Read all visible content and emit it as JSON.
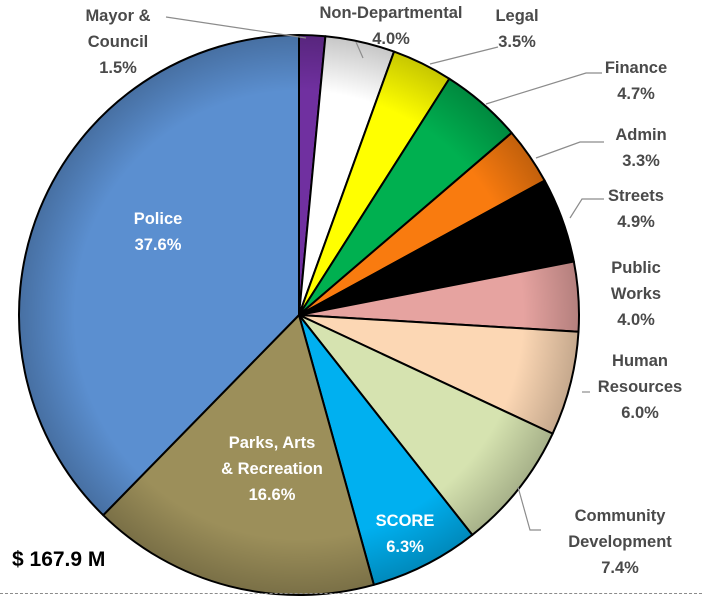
{
  "chart_data": {
    "type": "pie",
    "title": "",
    "total_label": "$ 167.9 M",
    "slices": [
      {
        "label": [
          "Mayor &",
          "Council"
        ],
        "value": 1.5,
        "value_text": "1.5%",
        "color": "#7030a0"
      },
      {
        "label": [
          "Non-Departmental"
        ],
        "value": 4.0,
        "value_text": "4.0%",
        "color": "#ffffff"
      },
      {
        "label": [
          "Legal"
        ],
        "value": 3.5,
        "value_text": "3.5%",
        "color": "#ffff00"
      },
      {
        "label": [
          "Finance"
        ],
        "value": 4.7,
        "value_text": "4.7%",
        "color": "#00b050"
      },
      {
        "label": [
          "Admin"
        ],
        "value": 3.3,
        "value_text": "3.3%",
        "color": "#f97b0f"
      },
      {
        "label": [
          "Streets"
        ],
        "value": 4.9,
        "value_text": "4.9%",
        "color": "#000000"
      },
      {
        "label": [
          "Public",
          "Works"
        ],
        "value": 4.0,
        "value_text": "4.0%",
        "color": "#e6a3a0"
      },
      {
        "label": [
          "Human",
          "Resources"
        ],
        "value": 6.0,
        "value_text": "6.0%",
        "color": "#fcd7b4"
      },
      {
        "label": [
          "Community",
          "Development"
        ],
        "value": 7.4,
        "value_text": "7.4%",
        "color": "#d6e3b0"
      },
      {
        "label": [
          "SCORE"
        ],
        "value": 6.3,
        "value_text": "6.3%",
        "color": "#00b0f0"
      },
      {
        "label": [
          "Parks, Arts",
          "& Recreation"
        ],
        "value": 16.6,
        "value_text": "16.6%",
        "color": "#9c8f5a"
      },
      {
        "label": [
          "Police"
        ],
        "value": 37.6,
        "value_text": "37.6%",
        "color": "#5b8fd0"
      }
    ]
  }
}
